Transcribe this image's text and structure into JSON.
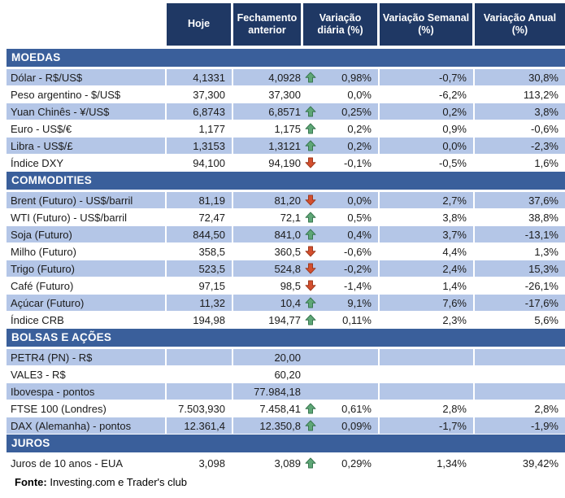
{
  "header": {
    "columns": [
      "Hoje",
      "Fechamento anterior",
      "Variação diária (%)",
      "Variação Semanal (%)",
      "Variação Anual (%)"
    ]
  },
  "sections": [
    {
      "title": "MOEDAS",
      "rows": [
        {
          "label": "Dólar - R$/US$",
          "hoje": "4,1331",
          "fechamento": "4,0928",
          "arrow": "up",
          "diaria": "0,98%",
          "semanal": "-0,7%",
          "anual": "30,8%"
        },
        {
          "label": "Peso argentino - $/US$",
          "hoje": "37,300",
          "fechamento": "37,300",
          "arrow": "",
          "diaria": "0,0%",
          "semanal": "-6,2%",
          "anual": "113,2%"
        },
        {
          "label": "Yuan Chinês - ¥/US$",
          "hoje": "6,8743",
          "fechamento": "6,8571",
          "arrow": "up",
          "diaria": "0,25%",
          "semanal": "0,2%",
          "anual": "3,8%"
        },
        {
          "label": "Euro - US$/€",
          "hoje": "1,177",
          "fechamento": "1,175",
          "arrow": "up",
          "diaria": "0,2%",
          "semanal": "0,9%",
          "anual": "-0,6%"
        },
        {
          "label": "Libra - US$/£",
          "hoje": "1,3153",
          "fechamento": "1,3121",
          "arrow": "up",
          "diaria": "0,2%",
          "semanal": "0,0%",
          "anual": "-2,3%"
        },
        {
          "label": "Índice DXY",
          "hoje": "94,100",
          "fechamento": "94,190",
          "arrow": "down",
          "diaria": "-0,1%",
          "semanal": "-0,5%",
          "anual": "1,6%"
        }
      ]
    },
    {
      "title": "COMMODITIES",
      "rows": [
        {
          "label": "Brent (Futuro) - US$/barril",
          "hoje": "81,19",
          "fechamento": "81,20",
          "arrow": "down",
          "diaria": "0,0%",
          "semanal": "2,7%",
          "anual": "37,6%"
        },
        {
          "label": "WTI (Futuro) - US$/barril",
          "hoje": "72,47",
          "fechamento": "72,1",
          "arrow": "up",
          "diaria": "0,5%",
          "semanal": "3,8%",
          "anual": "38,8%"
        },
        {
          "label": "Soja (Futuro)",
          "hoje": "844,50",
          "fechamento": "841,0",
          "arrow": "up",
          "diaria": "0,4%",
          "semanal": "3,7%",
          "anual": "-13,1%"
        },
        {
          "label": "Milho (Futuro)",
          "hoje": "358,5",
          "fechamento": "360,5",
          "arrow": "down",
          "diaria": "-0,6%",
          "semanal": "4,4%",
          "anual": "1,3%"
        },
        {
          "label": "Trigo (Futuro)",
          "hoje": "523,5",
          "fechamento": "524,8",
          "arrow": "down",
          "diaria": "-0,2%",
          "semanal": "2,4%",
          "anual": "15,3%"
        },
        {
          "label": "Café (Futuro)",
          "hoje": "97,15",
          "fechamento": "98,5",
          "arrow": "down",
          "diaria": "-1,4%",
          "semanal": "1,4%",
          "anual": "-26,1%"
        },
        {
          "label": "Açúcar (Futuro)",
          "hoje": "11,32",
          "fechamento": "10,4",
          "arrow": "up",
          "diaria": "9,1%",
          "semanal": "7,6%",
          "anual": "-17,6%"
        },
        {
          "label": "Índice CRB",
          "hoje": "194,98",
          "fechamento": "194,77",
          "arrow": "up",
          "diaria": "0,11%",
          "semanal": "2,3%",
          "anual": "5,6%"
        }
      ]
    },
    {
      "title": "BOLSAS E AÇÕES",
      "rows": [
        {
          "label": "PETR4 (PN) - R$",
          "hoje": "",
          "fechamento": "20,00",
          "arrow": "",
          "diaria": "",
          "semanal": "",
          "anual": ""
        },
        {
          "label": "VALE3 - R$",
          "hoje": "",
          "fechamento": "60,20",
          "arrow": "",
          "diaria": "",
          "semanal": "",
          "anual": ""
        },
        {
          "label": "Ibovespa - pontos",
          "hoje": "",
          "fechamento": "77.984,18",
          "arrow": "",
          "diaria": "",
          "semanal": "",
          "anual": ""
        },
        {
          "label": "FTSE 100 (Londres)",
          "hoje": "7.503,930",
          "fechamento": "7.458,41",
          "arrow": "up",
          "diaria": "0,61%",
          "semanal": "2,8%",
          "anual": "2,8%"
        },
        {
          "label": "DAX (Alemanha) - pontos",
          "hoje": "12.361,4",
          "fechamento": "12.350,8",
          "arrow": "up",
          "diaria": "0,09%",
          "semanal": "-1,7%",
          "anual": "-1,9%"
        }
      ]
    },
    {
      "title": "JUROS",
      "rows": [
        {
          "label": "Juros de 10 anos - EUA",
          "hoje": "3,098",
          "fechamento": "3,089",
          "arrow": "up",
          "diaria": "0,29%",
          "semanal": "1,34%",
          "anual": "39,42%"
        }
      ]
    }
  ],
  "footer": {
    "label": "Fonte:",
    "text": " Investing.com e Trader's club"
  },
  "colors": {
    "header_bg": "#1F3864",
    "section_bg": "#3A5F9B",
    "row_shaded": "#B4C6E7",
    "arrow_up_fill": "#5FA777",
    "arrow_up_stroke": "#38774F",
    "arrow_down_fill": "#D44F2E",
    "arrow_down_stroke": "#9E3A1F"
  }
}
